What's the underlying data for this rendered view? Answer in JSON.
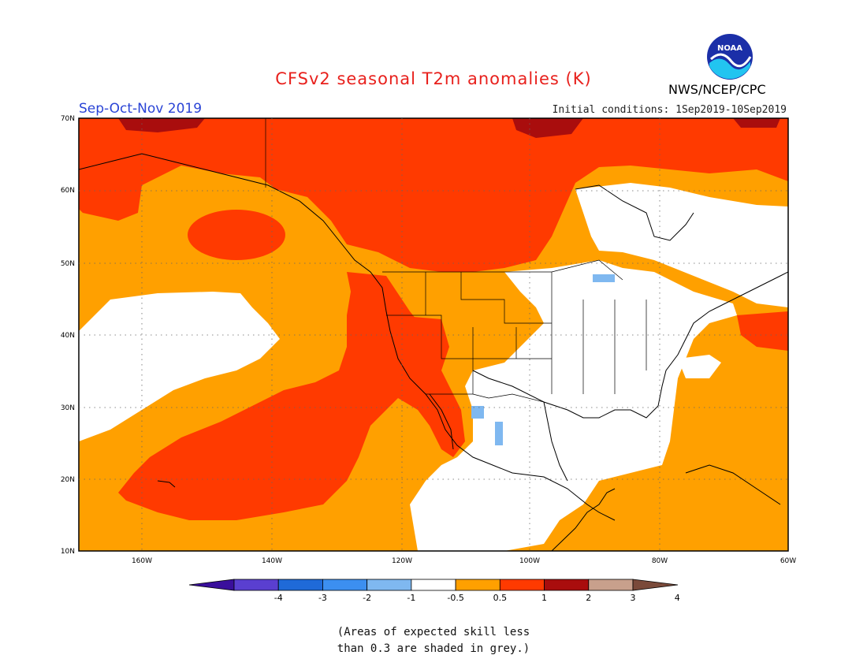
{
  "header": {
    "title": "CFSv2 seasonal T2m anomalies (K)",
    "season": "Sep-Oct-Nov 2019",
    "initial_conditions": "Initial conditions: 1Sep2019-10Sep2019",
    "agency": "NWS/NCEP/CPC",
    "logo_text": "NOAA"
  },
  "map": {
    "lon_range": [
      -172,
      -60
    ],
    "lat_range": [
      10,
      70
    ],
    "lon_ticks": [
      "160W",
      "140W",
      "120W",
      "100W",
      "80W",
      "60W"
    ],
    "lat_ticks": [
      "70N",
      "60N",
      "50N",
      "40N",
      "30N",
      "20N",
      "10N"
    ],
    "grid": true
  },
  "colorbar": {
    "labels": [
      "-4",
      "-3",
      "-2",
      "-1",
      "-0.5",
      "0.5",
      "1",
      "2",
      "3",
      "4"
    ],
    "colors": [
      "#3a0f9c",
      "#5a3fd0",
      "#1f6ad8",
      "#3c8ff0",
      "#7fb8f0",
      "#ffffff",
      "#ffa000",
      "#ff3a00",
      "#a90d0d",
      "#c8a08c",
      "#7a4a3a"
    ]
  },
  "footnote": {
    "line1": "(Areas of expected skill less",
    "line2": "than 0.3 are shaded in grey.)"
  }
}
